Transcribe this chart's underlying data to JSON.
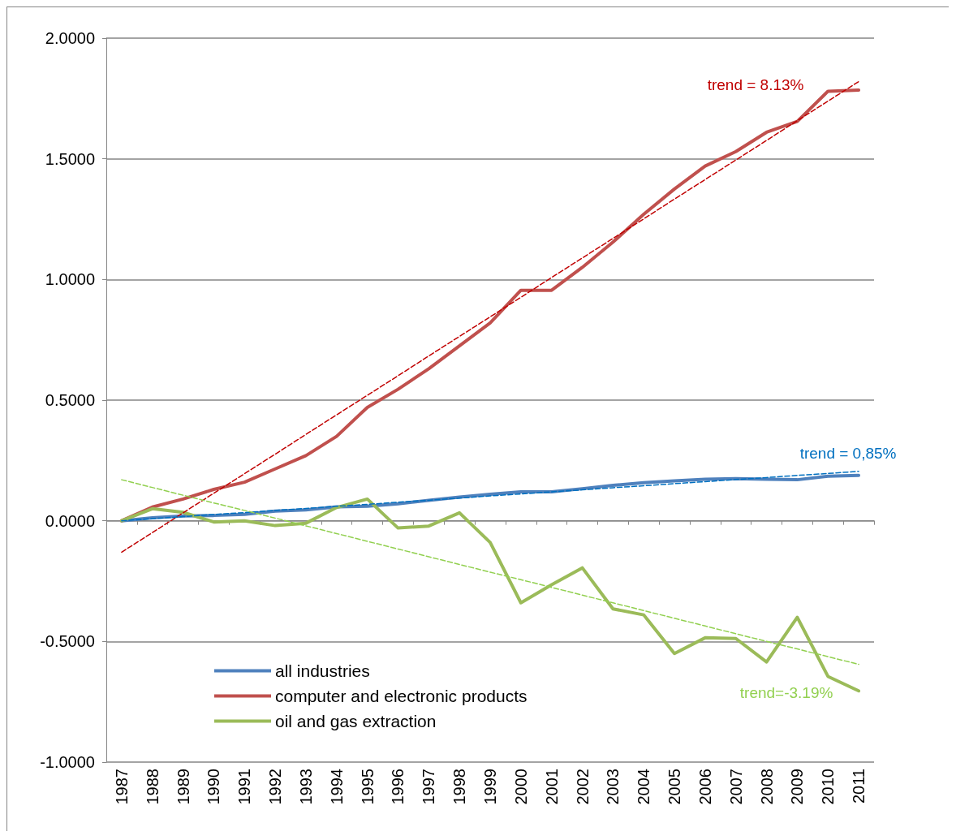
{
  "chart_data": {
    "type": "line",
    "categories": [
      "1987",
      "1988",
      "1989",
      "1990",
      "1991",
      "1992",
      "1993",
      "1994",
      "1995",
      "1996",
      "1997",
      "1998",
      "1999",
      "2000",
      "2001",
      "2002",
      "2003",
      "2004",
      "2005",
      "2006",
      "2007",
      "2008",
      "2009",
      "2010",
      "2011"
    ],
    "series": [
      {
        "name": "all industries",
        "color": "#4f81bd",
        "values": [
          0,
          0.012,
          0.02,
          0.022,
          0.027,
          0.04,
          0.045,
          0.058,
          0.06,
          0.07,
          0.085,
          0.098,
          0.11,
          0.12,
          0.12,
          0.133,
          0.147,
          0.158,
          0.165,
          0.172,
          0.175,
          0.172,
          0.17,
          0.185,
          0.188
        ]
      },
      {
        "name": "computer and electronic products",
        "color": "#c0504d",
        "values": [
          0,
          0.057,
          0.09,
          0.13,
          0.16,
          0.215,
          0.27,
          0.35,
          0.47,
          0.545,
          0.63,
          0.725,
          0.82,
          0.955,
          0.955,
          1.05,
          1.155,
          1.27,
          1.375,
          1.47,
          1.53,
          1.61,
          1.655,
          1.78,
          1.785
        ]
      },
      {
        "name": "oil and gas extraction",
        "color": "#9bbb59",
        "values": [
          0,
          0.05,
          0.035,
          -0.005,
          0,
          -0.02,
          -0.01,
          0.055,
          0.09,
          -0.03,
          -0.022,
          0.033,
          -0.09,
          -0.34,
          -0.265,
          -0.195,
          -0.365,
          -0.39,
          -0.55,
          -0.485,
          -0.488,
          -0.585,
          -0.4,
          -0.645,
          -0.705
        ]
      },
      {
        "type": "line",
        "line_style": "dashed",
        "color": "#c00000",
        "values": [
          -0.13,
          -0.049,
          0.033,
          0.114,
          0.195,
          0.276,
          0.358,
          0.439,
          0.52,
          0.601,
          0.683,
          0.764,
          0.845,
          0.926,
          1.008,
          1.089,
          1.17,
          1.251,
          1.333,
          1.414,
          1.495,
          1.576,
          1.658,
          1.739,
          1.82
        ]
      },
      {
        "type": "line",
        "line_style": "dashed",
        "color": "#0070c0",
        "values": [
          0,
          0.009,
          0.017,
          0.026,
          0.034,
          0.043,
          0.051,
          0.06,
          0.068,
          0.077,
          0.085,
          0.094,
          0.103,
          0.111,
          0.12,
          0.128,
          0.137,
          0.145,
          0.154,
          0.162,
          0.171,
          0.179,
          0.188,
          0.196,
          0.205
        ]
      },
      {
        "type": "line",
        "line_style": "dashed",
        "color": "#92d050",
        "values": [
          0.17,
          0.138,
          0.106,
          0.074,
          0.043,
          0.011,
          -0.021,
          -0.053,
          -0.085,
          -0.117,
          -0.149,
          -0.181,
          -0.213,
          -0.244,
          -0.276,
          -0.308,
          -0.34,
          -0.372,
          -0.404,
          -0.436,
          -0.468,
          -0.5,
          -0.531,
          -0.563,
          -0.595
        ]
      }
    ],
    "annotations": [
      "trend = 8.13%",
      "trend = 0,85%",
      "trend=-3.19%"
    ],
    "ylim": [
      -1,
      2
    ],
    "yticks": [
      {
        "value": -1,
        "label": "-1.0000"
      },
      {
        "value": -0.5,
        "label": "-0.5000"
      },
      {
        "value": 0,
        "label": "0.0000"
      },
      {
        "value": 0.5,
        "label": "0.5000"
      },
      {
        "value": 1,
        "label": "1.0000"
      },
      {
        "value": 1.5,
        "label": "1.5000"
      },
      {
        "value": 2,
        "label": "2.0000"
      }
    ],
    "grid": "y",
    "legend": "bottom left",
    "marker": "none",
    "line_style": "solid"
  }
}
